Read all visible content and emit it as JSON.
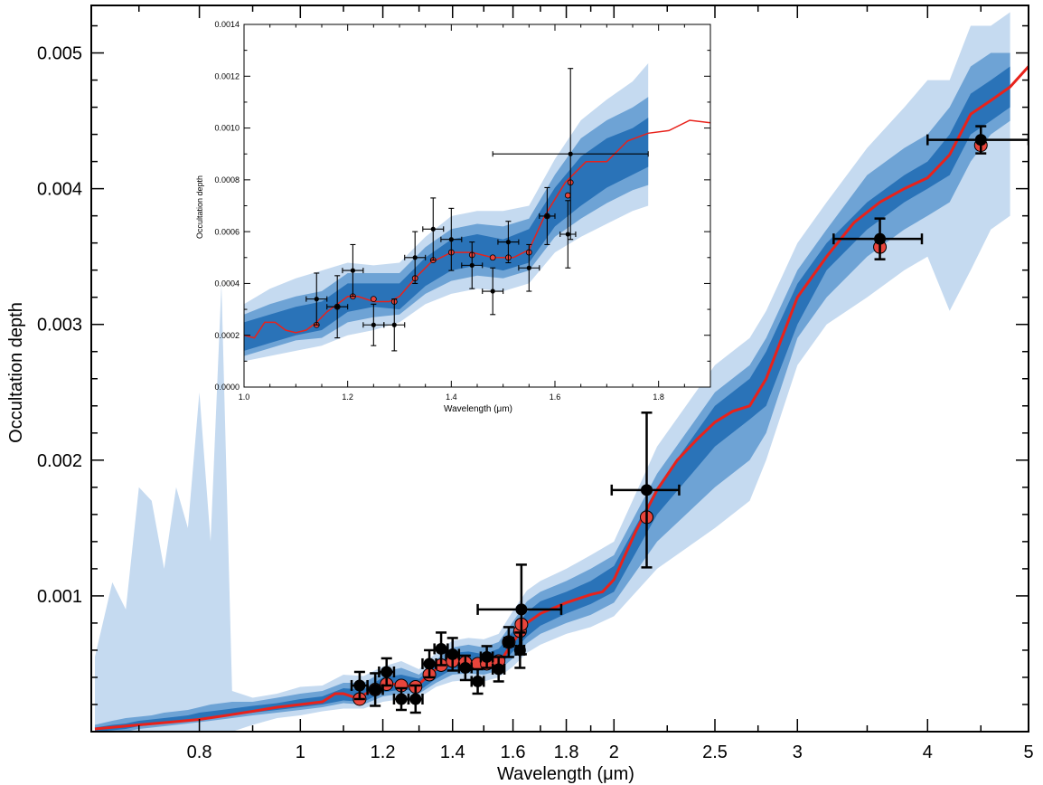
{
  "chart_data": [
    {
      "type": "line",
      "title": "",
      "xlabel": "Wavelength (μm)",
      "ylabel": "Occultation depth",
      "xscale": "log",
      "xlim": [
        0.63,
        5.0
      ],
      "ylim": [
        0.0,
        0.00535
      ],
      "xticks": [
        0.8,
        1,
        1.2,
        1.4,
        1.6,
        1.8,
        2,
        2.5,
        3,
        4,
        5
      ],
      "xtick_labels": [
        "0.8",
        "1",
        "1.2",
        "1.4",
        "1.6",
        "1.8",
        "2",
        "2.5",
        "3",
        "4",
        "5"
      ],
      "yticks": [
        0.001,
        0.002,
        0.003,
        0.004,
        0.005
      ],
      "ytick_labels": [
        "0.001",
        "0.002",
        "0.003",
        "0.004",
        "0.005"
      ],
      "colors": {
        "model_line": "#e8221b",
        "band_outer": "#c5daf0",
        "band_middle": "#6ea3d5",
        "band_inner": "#2a73b8",
        "observed": "#000000",
        "binned_model": "#e8453c"
      },
      "model": {
        "x": [
          0.635,
          0.7,
          0.75,
          0.8,
          0.85,
          0.9,
          0.95,
          1.0,
          1.05,
          1.08,
          1.1,
          1.13,
          1.15,
          1.2,
          1.25,
          1.28,
          1.3,
          1.33,
          1.36,
          1.4,
          1.45,
          1.5,
          1.53,
          1.56,
          1.6,
          1.65,
          1.7,
          1.8,
          1.9,
          1.95,
          2.0,
          2.1,
          2.2,
          2.3,
          2.4,
          2.5,
          2.6,
          2.7,
          2.8,
          3.0,
          3.2,
          3.4,
          3.6,
          3.8,
          4.0,
          4.2,
          4.4,
          4.6,
          4.8,
          5.0
        ],
        "y": [
          2e-05,
          5e-05,
          7e-05,
          9e-05,
          0.00012,
          0.00015,
          0.00018,
          0.0002,
          0.00022,
          0.00028,
          0.00028,
          0.00025,
          0.00027,
          0.00035,
          0.00035,
          0.00033,
          0.00035,
          0.00042,
          0.00048,
          0.00052,
          0.00052,
          0.0005,
          0.00049,
          0.00053,
          0.00066,
          0.0008,
          0.00087,
          0.00095,
          0.00101,
          0.00103,
          0.00112,
          0.00148,
          0.00178,
          0.002,
          0.00215,
          0.00228,
          0.00236,
          0.0024,
          0.0026,
          0.0032,
          0.0035,
          0.00375,
          0.0039,
          0.004,
          0.00408,
          0.00425,
          0.00455,
          0.00465,
          0.00475,
          0.0049
        ]
      },
      "bands": {
        "x": [
          0.635,
          0.66,
          0.68,
          0.7,
          0.72,
          0.74,
          0.76,
          0.78,
          0.8,
          0.82,
          0.84,
          0.86,
          0.9,
          0.95,
          1.0,
          1.05,
          1.1,
          1.15,
          1.2,
          1.25,
          1.3,
          1.35,
          1.4,
          1.45,
          1.5,
          1.55,
          1.6,
          1.65,
          1.7,
          1.8,
          1.9,
          2.0,
          2.2,
          2.5,
          2.7,
          2.8,
          3.0,
          3.2,
          3.5,
          3.8,
          4.0,
          4.2,
          4.4,
          4.6,
          4.8
        ],
        "outer_low": [
          0.0,
          0.0,
          0.0,
          0.0,
          0.0,
          0.0,
          0.0,
          0.0,
          0.0,
          0.0,
          0.0,
          0.0,
          5e-05,
          0.0001,
          0.00012,
          0.00015,
          0.00017,
          0.00017,
          0.00022,
          0.00024,
          0.00025,
          0.00033,
          0.00037,
          0.00038,
          0.00037,
          0.0004,
          0.00048,
          0.00058,
          0.00064,
          0.00072,
          0.00077,
          0.00085,
          0.0012,
          0.0015,
          0.0017,
          0.002,
          0.0027,
          0.003,
          0.0032,
          0.0034,
          0.0035,
          0.0031,
          0.0034,
          0.0037,
          0.0038
        ],
        "outer_high": [
          0.00055,
          0.0011,
          0.0009,
          0.0018,
          0.0017,
          0.0012,
          0.0018,
          0.0015,
          0.0025,
          0.0014,
          0.0033,
          0.0003,
          0.00025,
          0.00028,
          0.00033,
          0.00034,
          0.00042,
          0.00041,
          0.00048,
          0.00052,
          0.00046,
          0.00058,
          0.00067,
          0.00069,
          0.00068,
          0.00072,
          0.00089,
          0.00104,
          0.00111,
          0.0012,
          0.0013,
          0.0014,
          0.0021,
          0.0027,
          0.0029,
          0.0031,
          0.0036,
          0.0039,
          0.0043,
          0.0046,
          0.0048,
          0.0048,
          0.0052,
          0.0052,
          0.0053
        ],
        "middle_low": [
          0.0,
          0.0,
          0.0,
          2e-05,
          3e-05,
          4e-05,
          5e-05,
          6e-05,
          7e-05,
          8e-05,
          9e-05,
          0.0001,
          0.00012,
          0.00014,
          0.00016,
          0.00018,
          0.00021,
          0.0002,
          0.00026,
          0.00028,
          0.00028,
          0.00036,
          0.00042,
          0.00043,
          0.00042,
          0.00045,
          0.00054,
          0.00065,
          0.00072,
          0.0008,
          0.00086,
          0.00095,
          0.0014,
          0.0018,
          0.002,
          0.0022,
          0.0029,
          0.0032,
          0.0035,
          0.0037,
          0.0038,
          0.0039,
          0.0042,
          0.0044,
          0.0045
        ],
        "middle_high": [
          5e-05,
          8e-05,
          0.0001,
          0.00011,
          0.00012,
          0.00014,
          0.00015,
          0.00016,
          0.00018,
          0.0002,
          0.00021,
          0.00022,
          0.00022,
          0.00025,
          0.00028,
          0.0003,
          0.00036,
          0.00036,
          0.00044,
          0.00047,
          0.00042,
          0.00053,
          0.00062,
          0.00064,
          0.00062,
          0.00066,
          0.00081,
          0.00096,
          0.00103,
          0.00111,
          0.0012,
          0.0013,
          0.0019,
          0.0025,
          0.0027,
          0.0029,
          0.0034,
          0.0037,
          0.0041,
          0.0043,
          0.0044,
          0.0046,
          0.0049,
          0.005,
          0.005
        ],
        "inner_low": [
          0.0,
          1e-05,
          2e-05,
          4e-05,
          5e-05,
          6e-05,
          7e-05,
          8e-05,
          9e-05,
          0.0001,
          0.00011,
          0.00012,
          0.00014,
          0.00016,
          0.00018,
          0.0002,
          0.00023,
          0.00022,
          0.00029,
          0.00031,
          0.0003,
          0.00039,
          0.00046,
          0.00047,
          0.00045,
          0.00048,
          0.00059,
          0.0007,
          0.00078,
          0.00087,
          0.00094,
          0.00103,
          0.0016,
          0.0021,
          0.0023,
          0.0024,
          0.003,
          0.0034,
          0.0037,
          0.0039,
          0.004,
          0.0041,
          0.0044,
          0.0045,
          0.0046
        ],
        "inner_high": [
          3e-05,
          5e-05,
          6e-05,
          8e-05,
          9e-05,
          0.0001,
          0.00011,
          0.00012,
          0.00014,
          0.00015,
          0.00016,
          0.00017,
          0.00019,
          0.00021,
          0.00024,
          0.00026,
          0.00032,
          0.00031,
          0.0004,
          0.00042,
          0.00039,
          0.00049,
          0.00058,
          0.00059,
          0.00057,
          0.00061,
          0.00074,
          0.00088,
          0.00096,
          0.00103,
          0.00111,
          0.00122,
          0.0018,
          0.0024,
          0.0026,
          0.0028,
          0.0033,
          0.0036,
          0.0039,
          0.0041,
          0.0042,
          0.0044,
          0.0047,
          0.0048,
          0.0049
        ]
      },
      "observations": [
        {
          "x": 1.14,
          "y": 0.00034,
          "xerr": 0.02,
          "yerr": 0.0001
        },
        {
          "x": 1.18,
          "y": 0.00031,
          "xerr": 0.02,
          "yerr": 0.00012
        },
        {
          "x": 1.21,
          "y": 0.00044,
          "xerr": 0.02,
          "yerr": 0.0001
        },
        {
          "x": 1.25,
          "y": 0.00024,
          "xerr": 0.02,
          "yerr": 8e-05
        },
        {
          "x": 1.29,
          "y": 0.00024,
          "xerr": 0.02,
          "yerr": 0.0001
        },
        {
          "x": 1.33,
          "y": 0.0005,
          "xerr": 0.02,
          "yerr": 0.0001
        },
        {
          "x": 1.365,
          "y": 0.00061,
          "xerr": 0.02,
          "yerr": 0.00012
        },
        {
          "x": 1.4,
          "y": 0.00057,
          "xerr": 0.02,
          "yerr": 0.00012
        },
        {
          "x": 1.44,
          "y": 0.00047,
          "xerr": 0.02,
          "yerr": 9e-05
        },
        {
          "x": 1.48,
          "y": 0.00037,
          "xerr": 0.02,
          "yerr": 9e-05
        },
        {
          "x": 1.51,
          "y": 0.00055,
          "xerr": 0.02,
          "yerr": 8e-05
        },
        {
          "x": 1.55,
          "y": 0.00046,
          "xerr": 0.02,
          "yerr": 9e-05
        },
        {
          "x": 1.585,
          "y": 0.00066,
          "xerr": 0.015,
          "yerr": 0.00011
        },
        {
          "x": 1.625,
          "y": 0.0006,
          "xerr": 0.015,
          "yerr": 0.00013
        },
        {
          "x": 1.63,
          "y": 0.0009,
          "xerr": 0.15,
          "yerr": 0.00033
        },
        {
          "x": 2.15,
          "y": 0.00178,
          "xerr": 0.16,
          "yerr": 0.00057
        },
        {
          "x": 3.6,
          "y": 0.00363,
          "xerr": 0.35,
          "yerr": 0.00015
        },
        {
          "x": 4.5,
          "y": 0.00436,
          "xerr": 0.5,
          "yerr": 0.0001
        }
      ],
      "binned_model": [
        {
          "x": 1.14,
          "y": 0.00024
        },
        {
          "x": 1.18,
          "y": 0.00031
        },
        {
          "x": 1.21,
          "y": 0.00035
        },
        {
          "x": 1.25,
          "y": 0.00034
        },
        {
          "x": 1.29,
          "y": 0.00033
        },
        {
          "x": 1.33,
          "y": 0.00042
        },
        {
          "x": 1.365,
          "y": 0.00049
        },
        {
          "x": 1.4,
          "y": 0.00052
        },
        {
          "x": 1.44,
          "y": 0.00051
        },
        {
          "x": 1.48,
          "y": 0.0005
        },
        {
          "x": 1.51,
          "y": 0.0005
        },
        {
          "x": 1.55,
          "y": 0.00052
        },
        {
          "x": 1.585,
          "y": 0.00066
        },
        {
          "x": 1.625,
          "y": 0.00074
        },
        {
          "x": 1.63,
          "y": 0.00079
        },
        {
          "x": 2.15,
          "y": 0.00158
        },
        {
          "x": 3.6,
          "y": 0.00357
        },
        {
          "x": 4.5,
          "y": 0.00432
        }
      ]
    },
    {
      "type": "line",
      "title": "",
      "xlabel": "Wavelength (μm)",
      "ylabel": "Occultation depth",
      "xlim": [
        1.0,
        1.9
      ],
      "ylim": [
        0.0,
        0.0014
      ],
      "xticks": [
        1.0,
        1.2,
        1.4,
        1.6,
        1.8
      ],
      "xtick_labels": [
        "1.0",
        "1.2",
        "1.4",
        "1.6",
        "1.8"
      ],
      "yticks": [
        0.0,
        0.0002,
        0.0004,
        0.0006,
        0.0008,
        0.001,
        0.0012,
        0.0014
      ],
      "ytick_labels": [
        "0.0000",
        "0.0002",
        "0.0004",
        "0.0006",
        "0.0008",
        "0.0010",
        "0.0012",
        "0.0014"
      ],
      "model": {
        "x": [
          1.0,
          1.02,
          1.04,
          1.06,
          1.08,
          1.1,
          1.12,
          1.14,
          1.16,
          1.18,
          1.2,
          1.22,
          1.25,
          1.28,
          1.3,
          1.33,
          1.36,
          1.4,
          1.44,
          1.48,
          1.52,
          1.55,
          1.58,
          1.62,
          1.66,
          1.7,
          1.74,
          1.78,
          1.82,
          1.86,
          1.9
        ],
        "y": [
          0.0002,
          0.00019,
          0.00025,
          0.00025,
          0.00022,
          0.00021,
          0.00022,
          0.00025,
          0.00029,
          0.00032,
          0.00035,
          0.00035,
          0.00033,
          0.00033,
          0.00035,
          0.00042,
          0.00048,
          0.00052,
          0.00052,
          0.0005,
          0.0005,
          0.00053,
          0.00066,
          0.00079,
          0.00087,
          0.00087,
          0.00095,
          0.00098,
          0.00099,
          0.00103,
          0.00102
        ]
      },
      "bands": {
        "x": [
          1.0,
          1.05,
          1.1,
          1.15,
          1.2,
          1.25,
          1.3,
          1.35,
          1.4,
          1.45,
          1.5,
          1.55,
          1.6,
          1.65,
          1.7,
          1.75,
          1.78
        ],
        "outer_low": [
          0.0001,
          0.00012,
          0.00014,
          0.00016,
          0.0002,
          0.00022,
          0.00025,
          0.00032,
          0.00036,
          0.00038,
          0.00037,
          0.0004,
          0.00052,
          0.00058,
          0.00063,
          0.00068,
          0.0007
        ],
        "outer_high": [
          0.00032,
          0.00038,
          0.00042,
          0.00045,
          0.00048,
          0.00047,
          0.00048,
          0.00058,
          0.00066,
          0.00068,
          0.00068,
          0.0007,
          0.00088,
          0.00103,
          0.00111,
          0.00118,
          0.00125
        ],
        "middle_low": [
          0.00012,
          0.00015,
          0.00018,
          0.00019,
          0.00025,
          0.00027,
          0.00028,
          0.00036,
          0.00041,
          0.00043,
          0.00042,
          0.00045,
          0.00058,
          0.00065,
          0.00071,
          0.00076,
          0.00078
        ],
        "middle_high": [
          0.00028,
          0.00032,
          0.00035,
          0.00037,
          0.00044,
          0.00044,
          0.00044,
          0.00054,
          0.00061,
          0.00063,
          0.00062,
          0.00065,
          0.00082,
          0.00096,
          0.00103,
          0.00108,
          0.00112
        ],
        "inner_low": [
          0.00014,
          0.00017,
          0.0002,
          0.00022,
          0.00029,
          0.00031,
          0.0003,
          0.00039,
          0.00045,
          0.00047,
          0.00045,
          0.00048,
          0.00062,
          0.0007,
          0.00077,
          0.00082,
          0.00085
        ],
        "inner_high": [
          0.00025,
          0.00028,
          0.00031,
          0.00033,
          0.0004,
          0.0004,
          0.0004,
          0.0005,
          0.00057,
          0.00059,
          0.00057,
          0.00061,
          0.00077,
          0.00089,
          0.00096,
          0.001,
          0.00104
        ]
      },
      "observations": [
        {
          "x": 1.14,
          "y": 0.00034,
          "xerr": 0.02,
          "yerr": 0.0001
        },
        {
          "x": 1.18,
          "y": 0.00031,
          "xerr": 0.02,
          "yerr": 0.00012
        },
        {
          "x": 1.21,
          "y": 0.00045,
          "xerr": 0.02,
          "yerr": 0.0001
        },
        {
          "x": 1.25,
          "y": 0.00024,
          "xerr": 0.02,
          "yerr": 8e-05
        },
        {
          "x": 1.29,
          "y": 0.00024,
          "xerr": 0.02,
          "yerr": 0.0001
        },
        {
          "x": 1.33,
          "y": 0.0005,
          "xerr": 0.02,
          "yerr": 0.0001
        },
        {
          "x": 1.365,
          "y": 0.00061,
          "xerr": 0.02,
          "yerr": 0.00012
        },
        {
          "x": 1.4,
          "y": 0.00057,
          "xerr": 0.02,
          "yerr": 0.00012
        },
        {
          "x": 1.44,
          "y": 0.00047,
          "xerr": 0.02,
          "yerr": 9e-05
        },
        {
          "x": 1.48,
          "y": 0.00037,
          "xerr": 0.02,
          "yerr": 9e-05
        },
        {
          "x": 1.51,
          "y": 0.00056,
          "xerr": 0.02,
          "yerr": 8e-05
        },
        {
          "x": 1.55,
          "y": 0.00046,
          "xerr": 0.02,
          "yerr": 9e-05
        },
        {
          "x": 1.585,
          "y": 0.00066,
          "xerr": 0.015,
          "yerr": 0.00011
        },
        {
          "x": 1.625,
          "y": 0.00059,
          "xerr": 0.015,
          "yerr": 0.00013
        },
        {
          "x": 1.63,
          "y": 0.0009,
          "xerr": 0.15,
          "yerr": 0.00033
        }
      ],
      "binned_model": [
        {
          "x": 1.14,
          "y": 0.00024
        },
        {
          "x": 1.18,
          "y": 0.00031
        },
        {
          "x": 1.21,
          "y": 0.00035
        },
        {
          "x": 1.25,
          "y": 0.00034
        },
        {
          "x": 1.29,
          "y": 0.00033
        },
        {
          "x": 1.33,
          "y": 0.00042
        },
        {
          "x": 1.365,
          "y": 0.00049
        },
        {
          "x": 1.4,
          "y": 0.00052
        },
        {
          "x": 1.44,
          "y": 0.00051
        },
        {
          "x": 1.48,
          "y": 0.0005
        },
        {
          "x": 1.51,
          "y": 0.0005
        },
        {
          "x": 1.55,
          "y": 0.00052
        },
        {
          "x": 1.585,
          "y": 0.00066
        },
        {
          "x": 1.625,
          "y": 0.00074
        },
        {
          "x": 1.63,
          "y": 0.00079
        }
      ]
    }
  ]
}
